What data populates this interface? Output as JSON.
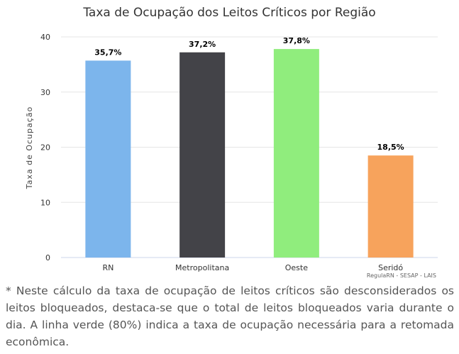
{
  "chart_data": {
    "type": "bar",
    "title": "Taxa de Ocupação dos Leitos Críticos por Região",
    "ylabel": "Taxa de Ocupação",
    "xlabel": "",
    "ylim": [
      0,
      40
    ],
    "yticks": [
      0,
      10,
      20,
      30,
      40
    ],
    "grid": true,
    "categories": [
      "RN",
      "Metropolitana",
      "Oeste",
      "Seridó"
    ],
    "values": [
      35.7,
      37.2,
      37.8,
      18.5
    ],
    "value_labels": [
      "35,7%",
      "37,2%",
      "37,8%",
      "18,5%"
    ],
    "colors": [
      "#7cb5ec",
      "#434348",
      "#90ed7d",
      "#f7a35c"
    ],
    "credits": "RegulaRN - SESAP - LAIS"
  },
  "footnote": "* Neste cálculo da taxa de ocupação de leitos críticos são desconsiderados os leitos bloqueados, destaca-se que o total de leitos bloqueados varia durante o dia. A linha verde (80%) indica a taxa de ocupação necessária para a retomada econômica."
}
